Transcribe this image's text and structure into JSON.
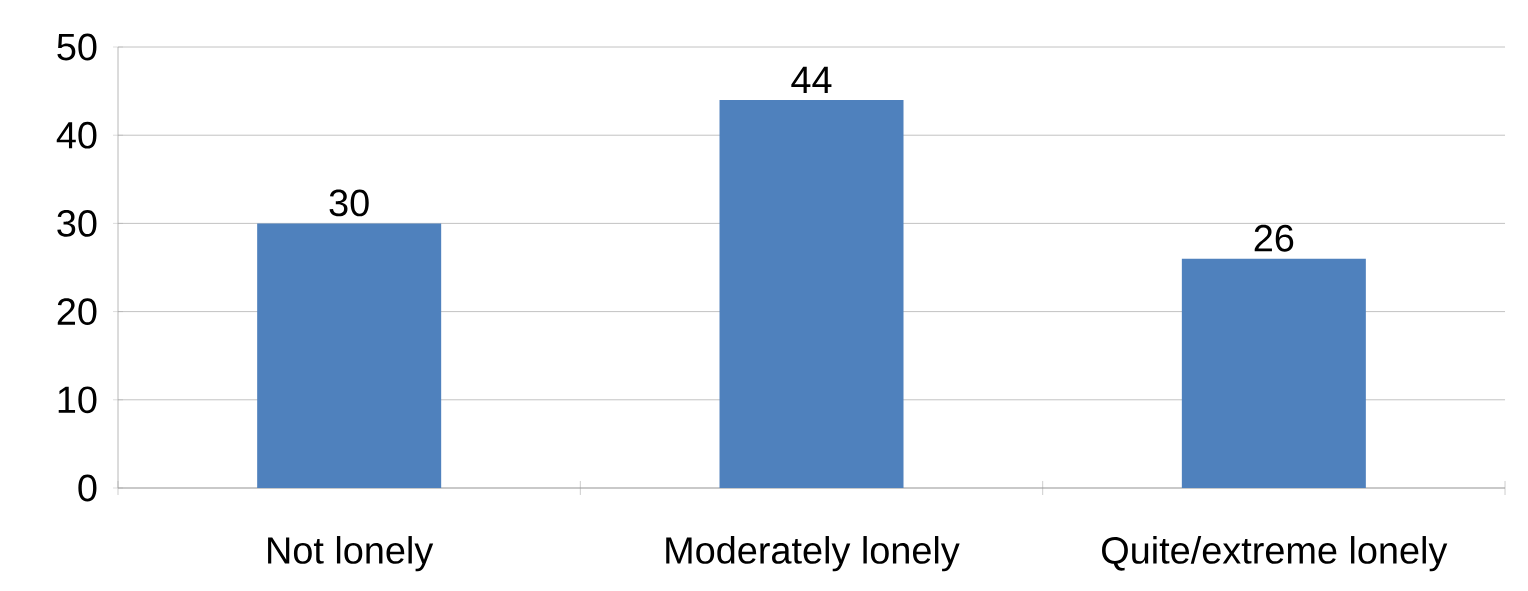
{
  "chart_data": {
    "type": "bar",
    "categories": [
      "Not lonely",
      "Moderately lonely",
      "Quite/extreme lonely"
    ],
    "values": [
      30,
      44,
      26
    ],
    "color": "#4f81bd",
    "ylim": [
      0,
      50
    ],
    "yticks": [
      0,
      10,
      20,
      30,
      40,
      50
    ],
    "grid": "y",
    "data_labels": true
  }
}
